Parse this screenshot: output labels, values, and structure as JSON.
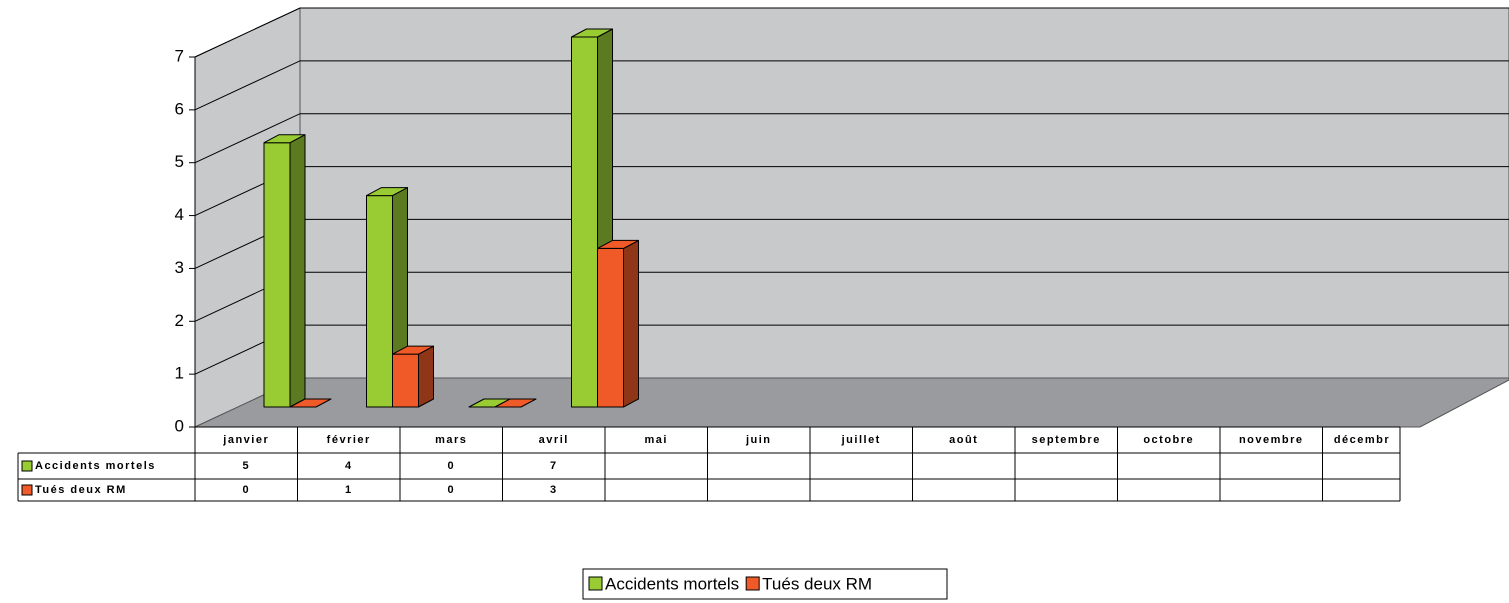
{
  "chart_data": {
    "type": "bar3d",
    "categories": [
      "janvier",
      "février",
      "mars",
      "avril",
      "mai",
      "juin",
      "juillet",
      "août",
      "septembre",
      "octobre",
      "novembre",
      "décembr"
    ],
    "series": [
      {
        "name": "Accidents mortels",
        "color": "#99cc33",
        "values": [
          5,
          4,
          0,
          7,
          null,
          null,
          null,
          null,
          null,
          null,
          null,
          null
        ]
      },
      {
        "name": "Tués deux RM",
        "color": "#f05a28",
        "values": [
          0,
          1,
          0,
          3,
          null,
          null,
          null,
          null,
          null,
          null,
          null,
          null
        ]
      }
    ],
    "ylim": [
      0,
      7
    ],
    "yticks": [
      0,
      1,
      2,
      3,
      4,
      5,
      6,
      7
    ],
    "grid": true,
    "legend": "bottom"
  }
}
